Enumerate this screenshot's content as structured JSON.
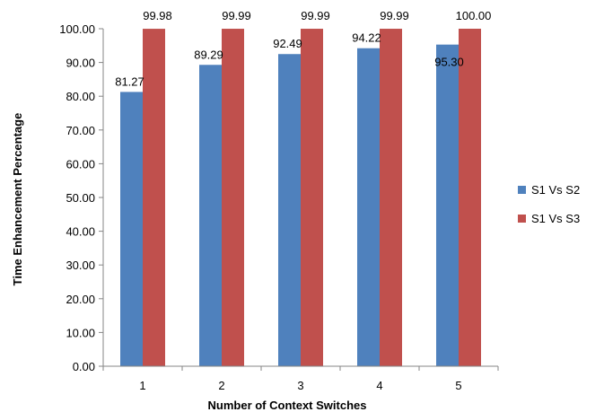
{
  "chart_data": {
    "type": "bar",
    "title": "",
    "xlabel": "Number of Context Switches",
    "ylabel": "Time Enhancement  Percentage",
    "ylim": [
      0,
      100
    ],
    "yticks": [
      "0.00",
      "10.00",
      "20.00",
      "30.00",
      "40.00",
      "50.00",
      "60.00",
      "70.00",
      "80.00",
      "90.00",
      "100.00"
    ],
    "categories": [
      "1",
      "2",
      "3",
      "4",
      "5"
    ],
    "series": [
      {
        "name": "S1 Vs S2",
        "color": "#4F81BD",
        "values": [
          81.27,
          89.29,
          92.49,
          94.22,
          95.3
        ],
        "labels": [
          "81.27",
          "89.29",
          "92.49",
          "94.22",
          "95.30"
        ]
      },
      {
        "name": "S1 Vs S3",
        "color": "#C0504D",
        "values": [
          99.98,
          99.99,
          99.99,
          99.99,
          100.0
        ],
        "labels": [
          "99.98",
          "99.99",
          "99.99",
          "99.99",
          "100.00"
        ]
      }
    ],
    "grid": false,
    "legend_position": "right"
  }
}
